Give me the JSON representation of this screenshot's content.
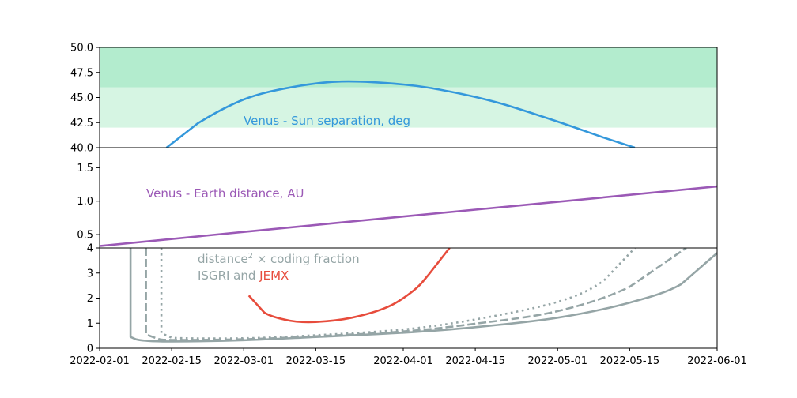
{
  "colors": {
    "separation": "#3498db",
    "distance": "#9b59b6",
    "isgri": "#95a5a6",
    "jemx": "#e74c3c",
    "band_dark": "#b3ecce",
    "band_light": "#d6f5e3"
  },
  "chart_data": [
    {
      "type": "line",
      "panel": "top",
      "annotation": "Venus - Sun separation, deg",
      "ylim": [
        40,
        50
      ],
      "yticks": [
        "40.0",
        "42.5",
        "45.0",
        "47.5",
        "50.0"
      ],
      "bands": [
        {
          "from": 46.0,
          "to": 50.0,
          "color": "#b3ecce"
        },
        {
          "from": 42.0,
          "to": 46.0,
          "color": "#d6f5e3"
        }
      ],
      "series": [
        {
          "x": [
            "2022-02-14",
            "2022-02-20",
            "2022-03-01",
            "2022-03-10",
            "2022-03-20",
            "2022-04-01",
            "2022-04-10",
            "2022-04-20",
            "2022-05-01",
            "2022-05-10",
            "2022-05-16"
          ],
          "y": [
            40.0,
            42.4,
            44.8,
            46.0,
            46.6,
            46.3,
            45.6,
            44.4,
            42.6,
            41.0,
            40.0
          ]
        }
      ]
    },
    {
      "type": "line",
      "panel": "middle",
      "annotation": "Venus - Earth distance, AU",
      "ylim": [
        0.3,
        1.8
      ],
      "yticks": [
        "0.5",
        "1.0",
        "1.5"
      ],
      "series": [
        {
          "x": [
            "2022-02-01",
            "2022-03-01",
            "2022-04-01",
            "2022-05-01",
            "2022-06-01"
          ],
          "y": [
            0.33,
            0.54,
            0.77,
            0.99,
            1.22
          ]
        }
      ]
    },
    {
      "type": "line",
      "panel": "bottom",
      "annotation_prefix": "distance",
      "annotation_sup": "2",
      "annotation_suffix": " × coding fraction",
      "annotation2_part1": "ISGRI and ",
      "annotation2_part2": "JEMX",
      "ylim": [
        0,
        4
      ],
      "yticks": [
        "0",
        "1",
        "2",
        "3",
        "4"
      ],
      "xticks": [
        "2022-02-01",
        "2022-02-15",
        "2022-03-01",
        "2022-03-15",
        "2022-04-01",
        "2022-04-15",
        "2022-05-01",
        "2022-05-15",
        "2022-06-01"
      ],
      "series": [
        {
          "style": "solid",
          "color": "#95a5a6",
          "x": [
            "2022-02-07",
            "2022-02-07",
            "2022-02-08",
            "2022-02-10",
            "2022-02-15",
            "2022-03-01",
            "2022-03-15",
            "2022-04-01",
            "2022-04-15",
            "2022-05-01",
            "2022-05-15",
            "2022-05-25",
            "2022-06-01"
          ],
          "y": [
            4.0,
            0.45,
            0.36,
            0.3,
            0.27,
            0.32,
            0.45,
            0.62,
            0.84,
            1.22,
            1.82,
            2.55,
            3.8
          ]
        },
        {
          "style": "dashed",
          "color": "#95a5a6",
          "x": [
            "2022-02-10",
            "2022-02-10",
            "2022-02-12",
            "2022-02-15",
            "2022-03-01",
            "2022-03-15",
            "2022-04-01",
            "2022-04-15",
            "2022-05-01",
            "2022-05-15",
            "2022-05-26"
          ],
          "y": [
            4.0,
            0.55,
            0.4,
            0.33,
            0.36,
            0.48,
            0.67,
            0.98,
            1.48,
            2.45,
            4.0
          ]
        },
        {
          "style": "dotted",
          "color": "#95a5a6",
          "x": [
            "2022-02-13",
            "2022-02-13",
            "2022-02-15",
            "2022-03-01",
            "2022-03-15",
            "2022-04-01",
            "2022-04-15",
            "2022-05-01",
            "2022-05-10",
            "2022-05-16"
          ],
          "y": [
            4.0,
            0.6,
            0.42,
            0.4,
            0.52,
            0.75,
            1.15,
            1.85,
            2.7,
            4.0
          ]
        },
        {
          "style": "solid",
          "color": "#e74c3c",
          "x": [
            "2022-03-02",
            "2022-03-05",
            "2022-03-10",
            "2022-03-15",
            "2022-03-22",
            "2022-03-29",
            "2022-04-03",
            "2022-04-06",
            "2022-04-10"
          ],
          "y": [
            2.1,
            1.42,
            1.1,
            1.05,
            1.22,
            1.65,
            2.3,
            2.95,
            4.0
          ]
        }
      ]
    }
  ]
}
